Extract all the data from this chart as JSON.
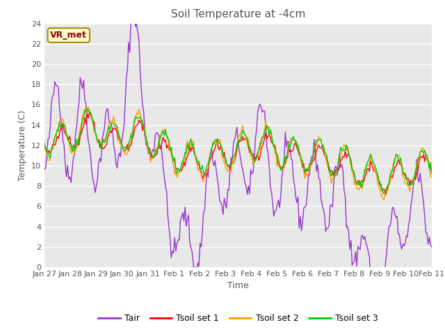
{
  "title": "Soil Temperature at -4cm",
  "xlabel": "Time",
  "ylabel": "Temperature (C)",
  "ylim": [
    0,
    24
  ],
  "yticks": [
    0,
    2,
    4,
    6,
    8,
    10,
    12,
    14,
    16,
    18,
    20,
    22,
    24
  ],
  "bg_color": "#e8e8e8",
  "annotation_text": "VR_met",
  "annotation_bg": "#ffffcc",
  "annotation_border": "#aa8800",
  "annotation_text_color": "#880000",
  "series_colors": [
    "#9933cc",
    "#ff0000",
    "#ff9900",
    "#00cc00"
  ],
  "series_labels": [
    "Tair",
    "Tsoil set 1",
    "Tsoil set 2",
    "Tsoil set 3"
  ],
  "xtick_labels": [
    "Jan 27",
    "Jan 28",
    "Jan 29",
    "Jan 30",
    "Jan 31",
    "Feb 1",
    "Feb 2",
    "Feb 3",
    "Feb 4",
    "Feb 5",
    "Feb 6",
    "Feb 7",
    "Feb 8",
    "Feb 9",
    "Feb 10",
    "Feb 11"
  ],
  "n_points": 337,
  "title_color": "#555555",
  "tick_color": "#555555",
  "grid_color": "#ffffff"
}
